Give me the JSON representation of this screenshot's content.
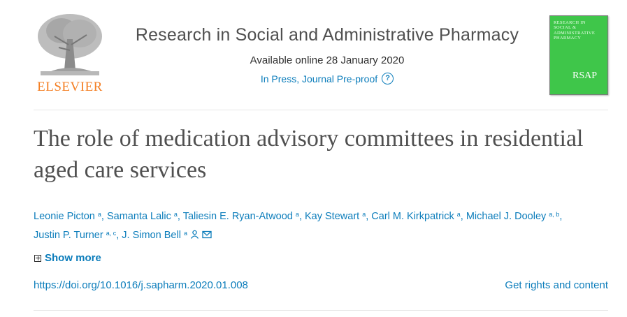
{
  "publisher": {
    "logo_text": "ELSEVIER"
  },
  "journal": {
    "title": "Research in Social and Administrative Pharmacy",
    "available_online": "Available online 28 January 2020",
    "status": "In Press, Journal Pre-proof",
    "help_glyph": "?",
    "cover": {
      "title": "RESEARCH IN SOCIAL & ADMINISTRATIVE PHARMACY",
      "abbrev": "RSAP",
      "color": "#3fc64a"
    }
  },
  "article": {
    "title": "The role of medication advisory committees in residential aged care services",
    "authors": [
      {
        "name": "Leonie Picton",
        "aff": "a"
      },
      {
        "name": "Samanta Lalic",
        "aff": "a"
      },
      {
        "name": "Taliesin E. Ryan-Atwood",
        "aff": "a"
      },
      {
        "name": "Kay Stewart",
        "aff": "a"
      },
      {
        "name": "Carl M. Kirkpatrick",
        "aff": "a"
      },
      {
        "name": "Michael J. Dooley",
        "aff": "a, b"
      },
      {
        "name": "Justin P. Turner",
        "aff": "a, c"
      },
      {
        "name": "J. Simon Bell",
        "aff": "a"
      }
    ],
    "show_more": "Show more",
    "doi": "https://doi.org/10.1016/j.sapharm.2020.01.008",
    "rights": "Get rights and content"
  },
  "icons": [
    "elsevier-tree-logo",
    "help-icon",
    "person-icon",
    "envelope-icon",
    "plus-box-icon"
  ],
  "colors": {
    "link": "#0c7dbb",
    "brand_orange": "#f47f24",
    "text": "#2e2e2e"
  }
}
